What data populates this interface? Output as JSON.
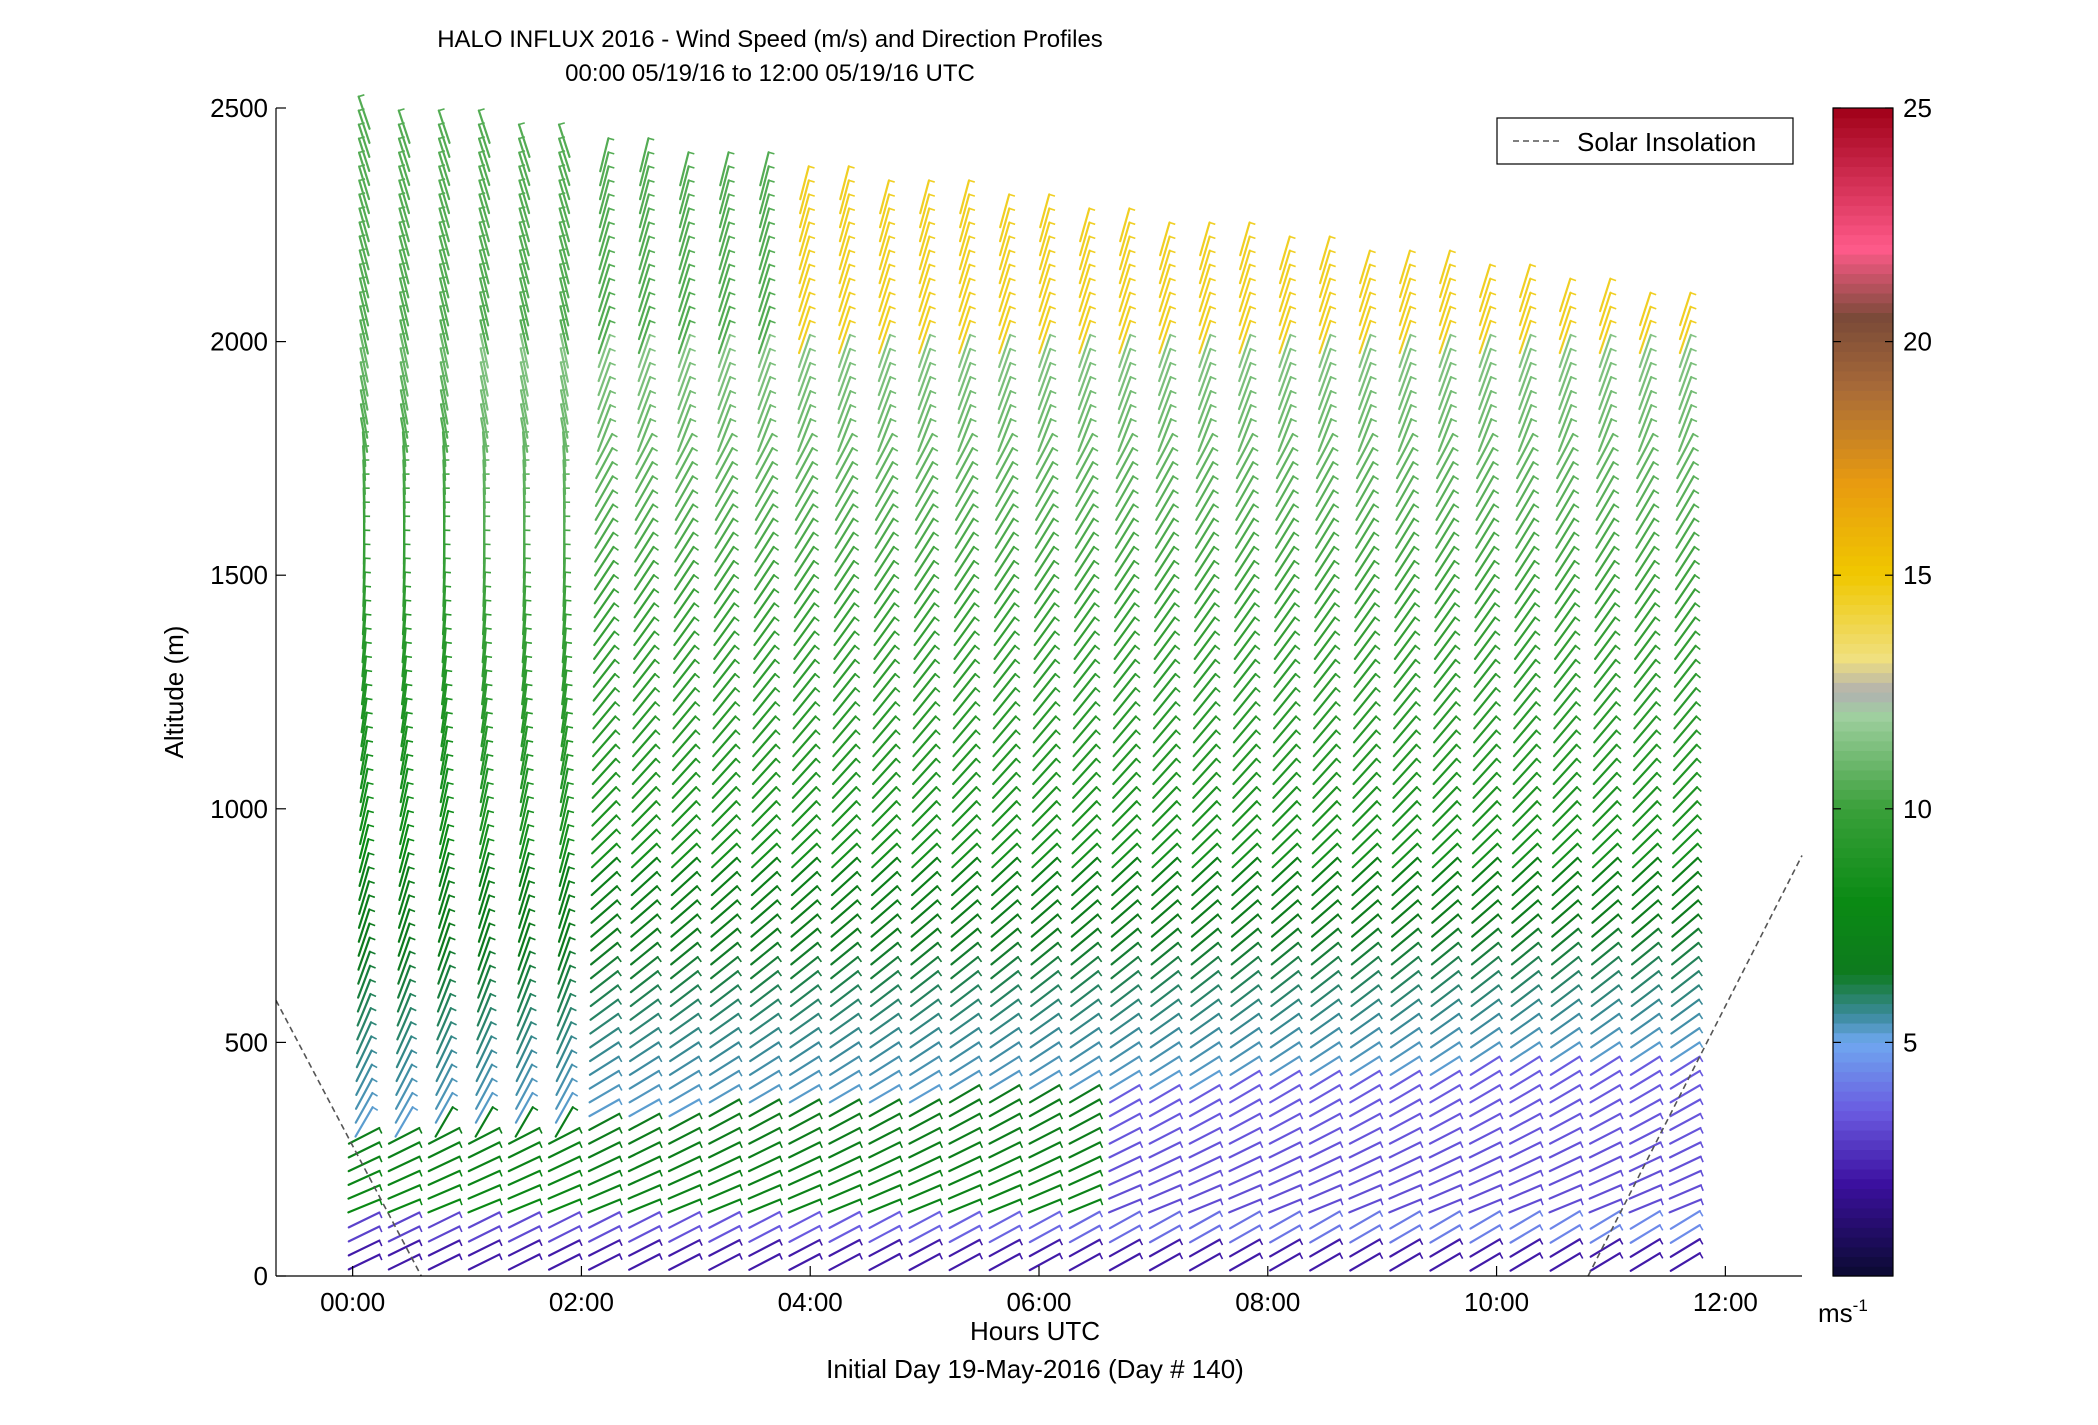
{
  "chart_data": {
    "type": "wind-barb profile (time-height)",
    "title": "HALO INFLUX 2016 - Wind Speed (m/s) and Direction Profiles",
    "subtitle": "00:00 05/19/16 to 12:00 05/19/16  UTC",
    "xlabel": "Hours UTC",
    "xlabel2": "Initial Day 19-May-2016 (Day # 140)",
    "ylabel": "Altitude (m)",
    "xlim_hours": [
      -0.67,
      12.67
    ],
    "ylim": [
      0,
      2500
    ],
    "x_ticks": [
      {
        "hour": 0,
        "label": "00:00"
      },
      {
        "hour": 2,
        "label": "02:00"
      },
      {
        "hour": 4,
        "label": "04:00"
      },
      {
        "hour": 6,
        "label": "06:00"
      },
      {
        "hour": 8,
        "label": "08:00"
      },
      {
        "hour": 10,
        "label": "10:00"
      },
      {
        "hour": 12,
        "label": "12:00"
      }
    ],
    "y_ticks": [
      {
        "value": 0,
        "label": "0"
      },
      {
        "value": 500,
        "label": "500"
      },
      {
        "value": 1000,
        "label": "1000"
      },
      {
        "value": 1500,
        "label": "1500"
      },
      {
        "value": 2000,
        "label": "2000"
      },
      {
        "value": 2500,
        "label": "2500"
      }
    ],
    "legend": {
      "position": "top-right",
      "entries": [
        {
          "label": "Solar Insolation",
          "style": "dashed",
          "color": "#555555"
        }
      ]
    },
    "colorbar": {
      "range": [
        0,
        25
      ],
      "unit_label": "ms",
      "unit_exponent": "-1",
      "ticks": [
        {
          "value": 5,
          "label": "5"
        },
        {
          "value": 10,
          "label": "10"
        },
        {
          "value": 15,
          "label": "15"
        },
        {
          "value": 20,
          "label": "20"
        },
        {
          "value": 25,
          "label": "25"
        }
      ],
      "stops": [
        {
          "v": 0,
          "c": "#0a0a30"
        },
        {
          "v": 2,
          "c": "#3c10a0"
        },
        {
          "v": 3.5,
          "c": "#6a5ae0"
        },
        {
          "v": 5,
          "c": "#6fa8f0"
        },
        {
          "v": 5.6,
          "c": "#3a8a9a"
        },
        {
          "v": 6.5,
          "c": "#0e7a1e"
        },
        {
          "v": 8,
          "c": "#0a8a14"
        },
        {
          "v": 10,
          "c": "#3aa03a"
        },
        {
          "v": 12,
          "c": "#a0d0a0"
        },
        {
          "v": 12.5,
          "c": "#b0b0b0"
        },
        {
          "v": 13.2,
          "c": "#f0e080"
        },
        {
          "v": 15,
          "c": "#f0c800"
        },
        {
          "v": 17,
          "c": "#e89a10"
        },
        {
          "v": 19,
          "c": "#a86a38"
        },
        {
          "v": 20.5,
          "c": "#7a4a38"
        },
        {
          "v": 22,
          "c": "#ff5a8a"
        },
        {
          "v": 25,
          "c": "#a00018"
        }
      ]
    },
    "solar_insolation_lines": [
      {
        "points": [
          [
            -0.67,
            590
          ],
          [
            0.6,
            0
          ]
        ]
      },
      {
        "points": [
          [
            10.8,
            0
          ],
          [
            12.67,
            900
          ]
        ]
      }
    ],
    "profiles": {
      "start_hour": 0.1,
      "end_hour": 11.8,
      "step_hours": 0.35,
      "data_top_start": 2500,
      "data_top_end": 2080,
      "gap_altitude_range": [
        2220,
        2250
      ],
      "lowest_altitude": 30
    },
    "description": "Wind barbs colored by speed: weak purple/blue winds (2-5 m/s) below ~300 m, green (6-10 m/s) winds aloft, yellow (13-16 m/s) winds above ~2000 m after 04:00."
  }
}
